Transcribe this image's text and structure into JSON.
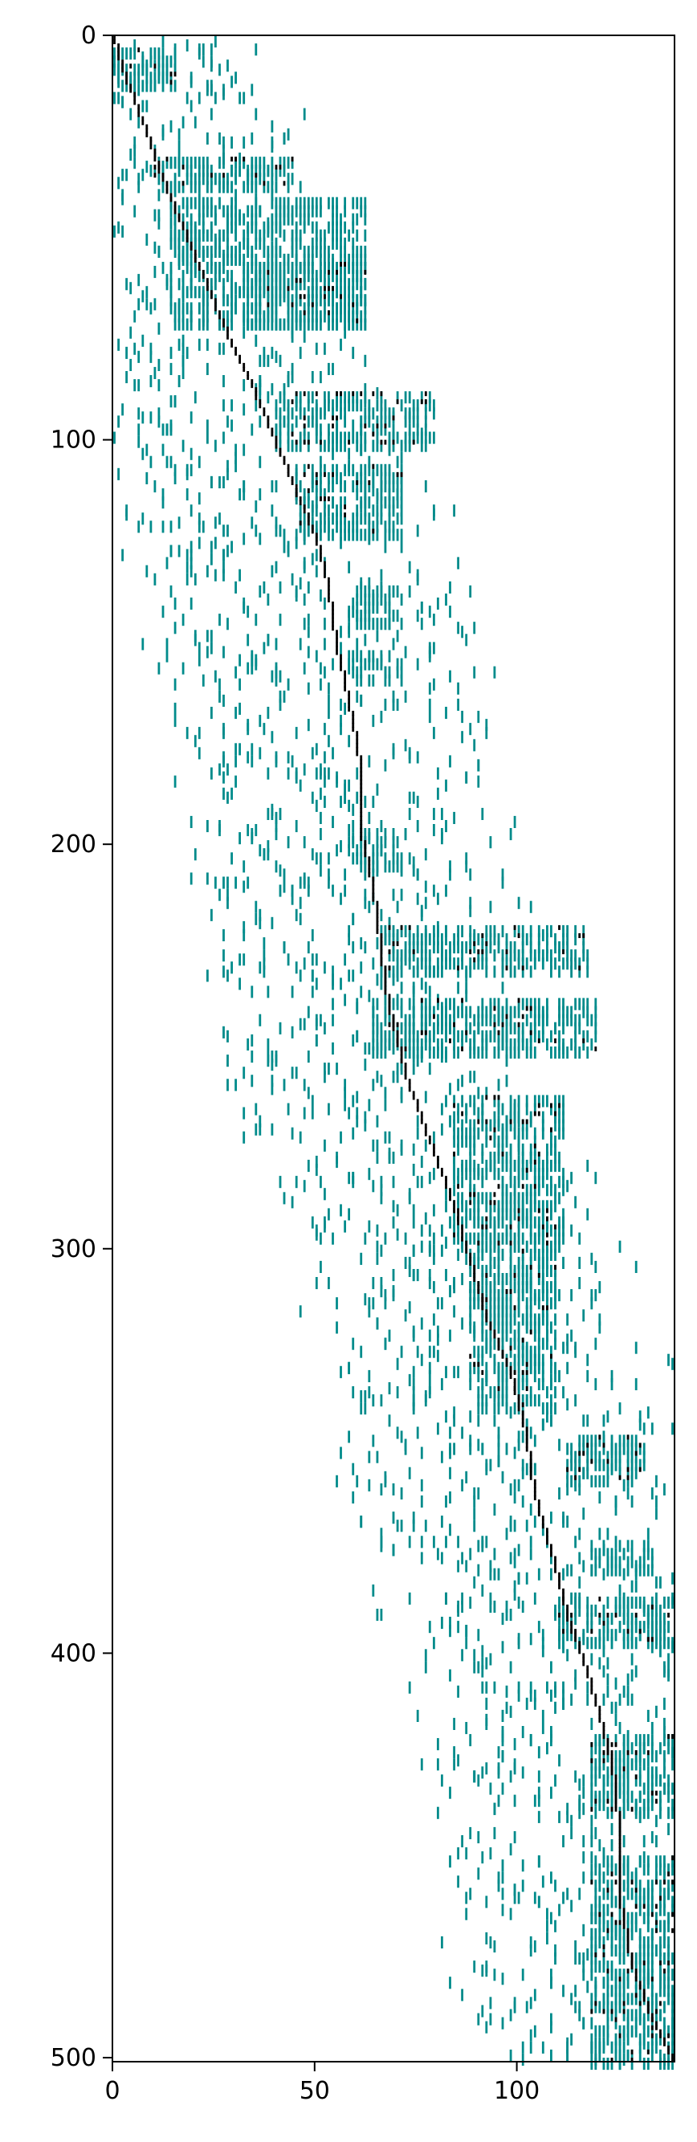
{
  "chart_data": {
    "type": "heatmap",
    "title": "",
    "xlabel": "",
    "ylabel": "",
    "xlim": [
      0,
      139
    ],
    "ylim": [
      501,
      0
    ],
    "y_inverted": true,
    "grid": false,
    "legend": "none",
    "colors": {
      "cell": "#008b8b",
      "highlight": "#000000",
      "background": "#ffffff"
    },
    "x_ticks": [
      0,
      50,
      100
    ],
    "x_tick_labels": [
      "0",
      "50",
      "100"
    ],
    "y_ticks": [
      0,
      100,
      200,
      300,
      400,
      500
    ],
    "y_tick_labels": [
      "0",
      "100",
      "200",
      "300",
      "400",
      "500"
    ],
    "diagonal_path": [
      [
        0,
        0
      ],
      [
        1,
        4
      ],
      [
        3,
        10
      ],
      [
        6,
        18
      ],
      [
        9,
        26
      ],
      [
        11,
        32
      ],
      [
        15,
        42
      ],
      [
        20,
        54
      ],
      [
        25,
        66
      ],
      [
        30,
        78
      ],
      [
        35,
        88
      ],
      [
        40,
        100
      ],
      [
        45,
        112
      ],
      [
        50,
        124
      ],
      [
        53,
        136
      ],
      [
        55,
        150
      ],
      [
        58,
        164
      ],
      [
        61,
        180
      ],
      [
        61,
        196
      ],
      [
        64,
        210
      ],
      [
        66,
        226
      ],
      [
        68,
        240
      ],
      [
        72,
        256
      ],
      [
        77,
        270
      ],
      [
        83,
        286
      ],
      [
        88,
        302
      ],
      [
        92,
        316
      ],
      [
        98,
        330
      ],
      [
        102,
        346
      ],
      [
        104,
        360
      ],
      [
        108,
        374
      ],
      [
        112,
        390
      ],
      [
        117,
        404
      ],
      [
        121,
        418
      ],
      [
        124,
        432
      ],
      [
        125,
        446
      ],
      [
        125,
        460
      ],
      [
        128,
        476
      ],
      [
        133,
        490
      ],
      [
        139,
        501
      ]
    ],
    "dense_bands": [
      {
        "rows": [
          3,
          12
        ],
        "cols": [
          0,
          16
        ],
        "black": true
      },
      {
        "rows": [
          30,
          38
        ],
        "cols": [
          10,
          45
        ],
        "black": true
      },
      {
        "rows": [
          40,
          72
        ],
        "cols": [
          14,
          63
        ],
        "black": false
      },
      {
        "rows": [
          56,
          72
        ],
        "cols": [
          35,
          63
        ],
        "black": true
      },
      {
        "rows": [
          88,
          102
        ],
        "cols": [
          40,
          80
        ],
        "black": true
      },
      {
        "rows": [
          106,
          124
        ],
        "cols": [
          45,
          72
        ],
        "black": true
      },
      {
        "rows": [
          136,
          146
        ],
        "cols": [
          60,
          72
        ],
        "black": false
      },
      {
        "rows": [
          152,
          160
        ],
        "cols": [
          58,
          72
        ],
        "black": false
      },
      {
        "rows": [
          196,
          206
        ],
        "cols": [
          58,
          72
        ],
        "black": false
      },
      {
        "rows": [
          220,
          232
        ],
        "cols": [
          66,
          118
        ],
        "black": true
      },
      {
        "rows": [
          238,
          252
        ],
        "cols": [
          64,
          120
        ],
        "black": true
      },
      {
        "rows": [
          262,
          300
        ],
        "cols": [
          84,
          112
        ],
        "black": true
      },
      {
        "rows": [
          300,
          340
        ],
        "cols": [
          88,
          110
        ],
        "black": true
      },
      {
        "rows": [
          346,
          358
        ],
        "cols": [
          112,
          132
        ],
        "black": true
      },
      {
        "rows": [
          372,
          380
        ],
        "cols": [
          118,
          134
        ],
        "black": false
      },
      {
        "rows": [
          386,
          398
        ],
        "cols": [
          110,
          139
        ],
        "black": true
      },
      {
        "rows": [
          420,
          440
        ],
        "cols": [
          118,
          139
        ],
        "black": true
      },
      {
        "rows": [
          450,
          501
        ],
        "cols": [
          118,
          139
        ],
        "black": true
      }
    ]
  }
}
